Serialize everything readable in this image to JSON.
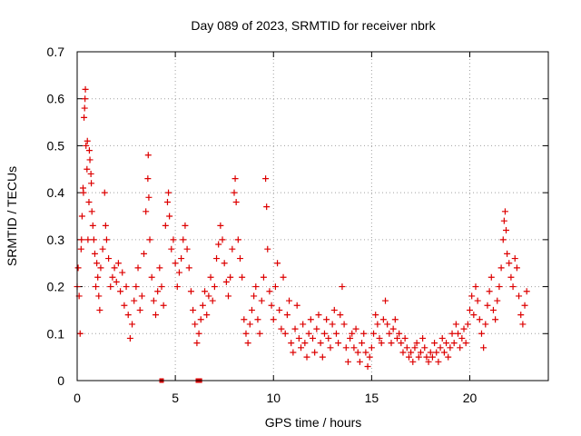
{
  "chart_data": {
    "type": "scatter",
    "title": "Day 089 of 2023, SRMTID for receiver nbrk",
    "xlabel": "GPS time / hours",
    "ylabel": "SRMTID / TECUs",
    "xlim": [
      0,
      24
    ],
    "ylim": [
      0,
      0.7
    ],
    "xticks": [
      0,
      5,
      10,
      15,
      20
    ],
    "yticks": [
      0,
      0.1,
      0.2,
      0.3,
      0.4,
      0.5,
      0.6,
      0.7
    ],
    "xtick_labels": [
      "0",
      "5",
      "10",
      "15",
      "20"
    ],
    "ytick_labels": [
      "0",
      "0.1",
      "0.2",
      "0.3",
      "0.4",
      "0.5",
      "0.6",
      "0.7"
    ],
    "grid": true,
    "marker": "plus",
    "series_color": "#dd0000",
    "series": [
      {
        "name": "SRMTID",
        "points": [
          [
            0.0,
            0.2
          ],
          [
            0.05,
            0.24
          ],
          [
            0.1,
            0.18
          ],
          [
            0.15,
            0.1
          ],
          [
            0.2,
            0.28
          ],
          [
            0.22,
            0.3
          ],
          [
            0.25,
            0.35
          ],
          [
            0.3,
            0.41
          ],
          [
            0.32,
            0.4
          ],
          [
            0.35,
            0.56
          ],
          [
            0.38,
            0.58
          ],
          [
            0.4,
            0.6
          ],
          [
            0.42,
            0.62
          ],
          [
            0.45,
            0.5
          ],
          [
            0.5,
            0.45
          ],
          [
            0.52,
            0.51
          ],
          [
            0.55,
            0.3
          ],
          [
            0.6,
            0.38
          ],
          [
            0.62,
            0.49
          ],
          [
            0.65,
            0.47
          ],
          [
            0.7,
            0.44
          ],
          [
            0.72,
            0.42
          ],
          [
            0.75,
            0.36
          ],
          [
            0.8,
            0.33
          ],
          [
            0.85,
            0.3
          ],
          [
            0.9,
            0.27
          ],
          [
            0.95,
            0.2
          ],
          [
            1.0,
            0.25
          ],
          [
            1.05,
            0.22
          ],
          [
            1.1,
            0.18
          ],
          [
            1.15,
            0.15
          ],
          [
            1.2,
            0.24
          ],
          [
            1.3,
            0.28
          ],
          [
            1.4,
            0.4
          ],
          [
            1.45,
            0.33
          ],
          [
            1.5,
            0.3
          ],
          [
            1.6,
            0.26
          ],
          [
            1.7,
            0.2
          ],
          [
            1.8,
            0.22
          ],
          [
            1.9,
            0.24
          ],
          [
            2.0,
            0.21
          ],
          [
            2.1,
            0.25
          ],
          [
            2.2,
            0.19
          ],
          [
            2.3,
            0.23
          ],
          [
            2.4,
            0.16
          ],
          [
            2.5,
            0.2
          ],
          [
            2.6,
            0.14
          ],
          [
            2.7,
            0.09
          ],
          [
            2.8,
            0.12
          ],
          [
            2.9,
            0.17
          ],
          [
            3.0,
            0.2
          ],
          [
            3.1,
            0.24
          ],
          [
            3.2,
            0.15
          ],
          [
            3.3,
            0.18
          ],
          [
            3.4,
            0.27
          ],
          [
            3.5,
            0.36
          ],
          [
            3.6,
            0.43
          ],
          [
            3.62,
            0.48
          ],
          [
            3.65,
            0.39
          ],
          [
            3.7,
            0.3
          ],
          [
            3.8,
            0.22
          ],
          [
            3.9,
            0.17
          ],
          [
            4.0,
            0.14
          ],
          [
            4.1,
            0.19
          ],
          [
            4.2,
            0.24
          ],
          [
            4.3,
            0.2
          ],
          [
            4.4,
            0.16
          ],
          [
            4.5,
            0.33
          ],
          [
            4.6,
            0.38
          ],
          [
            4.65,
            0.4
          ],
          [
            4.7,
            0.35
          ],
          [
            4.8,
            0.28
          ],
          [
            4.9,
            0.3
          ],
          [
            5.0,
            0.25
          ],
          [
            5.1,
            0.2
          ],
          [
            5.2,
            0.23
          ],
          [
            5.3,
            0.26
          ],
          [
            5.4,
            0.3
          ],
          [
            5.5,
            0.33
          ],
          [
            5.6,
            0.28
          ],
          [
            5.7,
            0.24
          ],
          [
            5.8,
            0.19
          ],
          [
            5.9,
            0.15
          ],
          [
            6.0,
            0.12
          ],
          [
            6.1,
            0.08
          ],
          [
            6.2,
            0.1
          ],
          [
            6.3,
            0.13
          ],
          [
            6.4,
            0.16
          ],
          [
            6.5,
            0.19
          ],
          [
            6.6,
            0.14
          ],
          [
            6.7,
            0.18
          ],
          [
            6.8,
            0.22
          ],
          [
            6.9,
            0.17
          ],
          [
            7.0,
            0.2
          ],
          [
            7.1,
            0.26
          ],
          [
            7.2,
            0.29
          ],
          [
            7.3,
            0.33
          ],
          [
            7.4,
            0.3
          ],
          [
            7.5,
            0.25
          ],
          [
            7.6,
            0.21
          ],
          [
            7.7,
            0.18
          ],
          [
            7.8,
            0.22
          ],
          [
            7.9,
            0.28
          ],
          [
            8.0,
            0.4
          ],
          [
            8.05,
            0.43
          ],
          [
            8.1,
            0.38
          ],
          [
            8.2,
            0.3
          ],
          [
            8.3,
            0.26
          ],
          [
            8.4,
            0.22
          ],
          [
            8.5,
            0.13
          ],
          [
            8.6,
            0.1
          ],
          [
            8.7,
            0.08
          ],
          [
            8.8,
            0.12
          ],
          [
            8.9,
            0.15
          ],
          [
            9.0,
            0.18
          ],
          [
            9.1,
            0.2
          ],
          [
            9.2,
            0.13
          ],
          [
            9.3,
            0.1
          ],
          [
            9.4,
            0.17
          ],
          [
            9.5,
            0.22
          ],
          [
            9.6,
            0.43
          ],
          [
            9.65,
            0.37
          ],
          [
            9.7,
            0.28
          ],
          [
            9.8,
            0.19
          ],
          [
            9.9,
            0.16
          ],
          [
            10.0,
            0.13
          ],
          [
            10.1,
            0.2
          ],
          [
            10.2,
            0.25
          ],
          [
            10.3,
            0.15
          ],
          [
            10.4,
            0.11
          ],
          [
            10.5,
            0.22
          ],
          [
            10.6,
            0.1
          ],
          [
            10.7,
            0.14
          ],
          [
            10.8,
            0.17
          ],
          [
            10.9,
            0.08
          ],
          [
            11.0,
            0.06
          ],
          [
            11.1,
            0.11
          ],
          [
            11.2,
            0.16
          ],
          [
            11.3,
            0.09
          ],
          [
            11.4,
            0.07
          ],
          [
            11.5,
            0.12
          ],
          [
            11.6,
            0.08
          ],
          [
            11.7,
            0.05
          ],
          [
            11.8,
            0.1
          ],
          [
            11.9,
            0.13
          ],
          [
            12.0,
            0.09
          ],
          [
            12.1,
            0.06
          ],
          [
            12.2,
            0.11
          ],
          [
            12.3,
            0.14
          ],
          [
            12.4,
            0.08
          ],
          [
            12.5,
            0.05
          ],
          [
            12.6,
            0.1
          ],
          [
            12.7,
            0.13
          ],
          [
            12.8,
            0.09
          ],
          [
            12.9,
            0.07
          ],
          [
            13.0,
            0.12
          ],
          [
            13.1,
            0.15
          ],
          [
            13.2,
            0.1
          ],
          [
            13.3,
            0.08
          ],
          [
            13.4,
            0.14
          ],
          [
            13.5,
            0.2
          ],
          [
            13.6,
            0.12
          ],
          [
            13.7,
            0.07
          ],
          [
            13.8,
            0.04
          ],
          [
            13.9,
            0.09
          ],
          [
            14.0,
            0.1
          ],
          [
            14.1,
            0.07
          ],
          [
            14.2,
            0.11
          ],
          [
            14.3,
            0.06
          ],
          [
            14.4,
            0.04
          ],
          [
            14.5,
            0.08
          ],
          [
            14.6,
            0.1
          ],
          [
            14.7,
            0.06
          ],
          [
            14.8,
            0.03
          ],
          [
            14.9,
            0.05
          ],
          [
            15.0,
            0.07
          ],
          [
            15.1,
            0.1
          ],
          [
            15.2,
            0.14
          ],
          [
            15.3,
            0.12
          ],
          [
            15.4,
            0.09
          ],
          [
            15.5,
            0.08
          ],
          [
            15.6,
            0.13
          ],
          [
            15.7,
            0.17
          ],
          [
            15.8,
            0.12
          ],
          [
            15.9,
            0.1
          ],
          [
            16.0,
            0.08
          ],
          [
            16.1,
            0.11
          ],
          [
            16.2,
            0.13
          ],
          [
            16.3,
            0.09
          ],
          [
            16.4,
            0.1
          ],
          [
            16.5,
            0.08
          ],
          [
            16.6,
            0.06
          ],
          [
            16.7,
            0.09
          ],
          [
            16.8,
            0.07
          ],
          [
            16.9,
            0.05
          ],
          [
            17.0,
            0.06
          ],
          [
            17.1,
            0.04
          ],
          [
            17.2,
            0.07
          ],
          [
            17.3,
            0.08
          ],
          [
            17.4,
            0.05
          ],
          [
            17.5,
            0.06
          ],
          [
            17.6,
            0.09
          ],
          [
            17.7,
            0.07
          ],
          [
            17.8,
            0.05
          ],
          [
            17.9,
            0.04
          ],
          [
            18.0,
            0.06
          ],
          [
            18.1,
            0.05
          ],
          [
            18.2,
            0.08
          ],
          [
            18.3,
            0.06
          ],
          [
            18.4,
            0.04
          ],
          [
            18.5,
            0.07
          ],
          [
            18.6,
            0.09
          ],
          [
            18.7,
            0.06
          ],
          [
            18.8,
            0.08
          ],
          [
            18.9,
            0.05
          ],
          [
            19.0,
            0.07
          ],
          [
            19.1,
            0.1
          ],
          [
            19.2,
            0.08
          ],
          [
            19.3,
            0.12
          ],
          [
            19.4,
            0.1
          ],
          [
            19.5,
            0.07
          ],
          [
            19.6,
            0.09
          ],
          [
            19.7,
            0.11
          ],
          [
            19.8,
            0.08
          ],
          [
            19.9,
            0.12
          ],
          [
            20.0,
            0.15
          ],
          [
            20.1,
            0.18
          ],
          [
            20.2,
            0.14
          ],
          [
            20.3,
            0.2
          ],
          [
            20.4,
            0.17
          ],
          [
            20.5,
            0.13
          ],
          [
            20.6,
            0.1
          ],
          [
            20.7,
            0.07
          ],
          [
            20.8,
            0.12
          ],
          [
            20.9,
            0.16
          ],
          [
            21.0,
            0.19
          ],
          [
            21.1,
            0.22
          ],
          [
            21.2,
            0.15
          ],
          [
            21.3,
            0.13
          ],
          [
            21.4,
            0.17
          ],
          [
            21.5,
            0.2
          ],
          [
            21.6,
            0.24
          ],
          [
            21.7,
            0.3
          ],
          [
            21.75,
            0.34
          ],
          [
            21.8,
            0.36
          ],
          [
            21.85,
            0.32
          ],
          [
            21.9,
            0.27
          ],
          [
            22.0,
            0.25
          ],
          [
            22.1,
            0.22
          ],
          [
            22.2,
            0.2
          ],
          [
            22.3,
            0.26
          ],
          [
            22.4,
            0.24
          ],
          [
            22.5,
            0.18
          ],
          [
            22.6,
            0.14
          ],
          [
            22.7,
            0.12
          ],
          [
            22.8,
            0.16
          ],
          [
            22.9,
            0.19
          ]
        ]
      }
    ],
    "zero_markers": [
      4.3,
      6.15,
      6.25
    ]
  }
}
